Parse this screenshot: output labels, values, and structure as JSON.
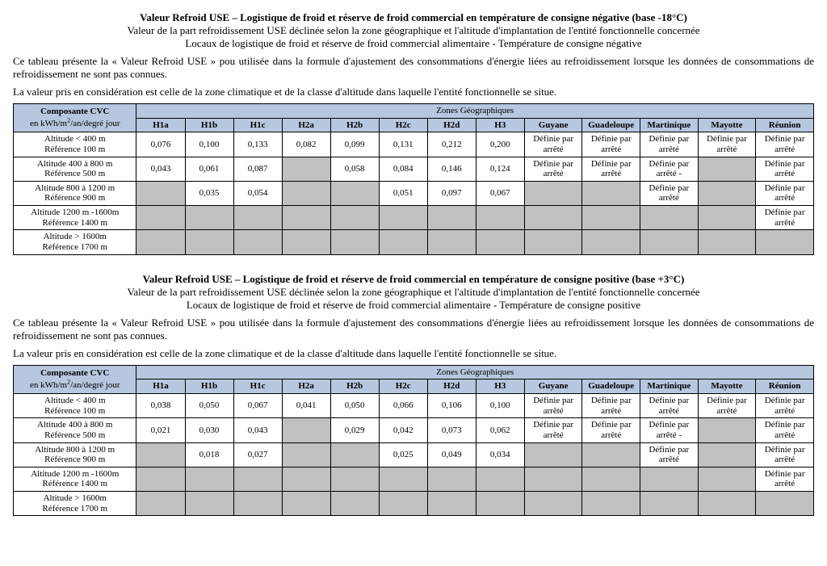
{
  "txt": {
    "def": "Définie par arrêté",
    "defm": "Définie par arrêté -",
    "zones": "Zones Géographiques",
    "compCvc": "Composante CVC",
    "compUnit": "en kWh/m²/an/degré jour"
  },
  "cols": {
    "h": [
      "H1a",
      "H1b",
      "H1c",
      "H2a",
      "H2b",
      "H2c",
      "H2d",
      "H3"
    ],
    "r": [
      "Guyane",
      "Guadeloupe",
      "Martinique",
      "Mayotte",
      "Réunion"
    ]
  },
  "rowLabels": [
    [
      "Altitude < 400 m",
      "Référence 100 m"
    ],
    [
      "Altitude 400 à 800 m",
      "Référence 500 m"
    ],
    [
      "Altitude 800 à 1200 m",
      "Référence 900 m"
    ],
    [
      "Altitude 1200 m -1600m",
      "Référence 1400 m"
    ],
    [
      "Altitude > 1600m",
      "Référence 1700 m"
    ]
  ],
  "sections": [
    {
      "title1": "Valeur Refroid USE – Logistique de froid et réserve de froid commercial en température de consigne négative (base -18°C)",
      "title2": "Valeur de la part refroidissement USE déclinée selon la zone géographique et l'altitude d'implantation de l'entité fonctionnelle concernée",
      "title3": "Locaux de logistique de froid et réserve de froid commercial alimentaire - Température de consigne négative",
      "intro1": "Ce tableau présente la « Valeur Refroid USE » pou utilisée dans la formule d'ajustement des consommations d'énergie liées au refroidissement lorsque les données de consommations de refroidissement ne sont pas connues.",
      "intro2": "La valeur pris en considération est celle de la zone climatique et de la classe d'altitude dans laquelle l'entité fonctionnelle se situe.",
      "rows": [
        {
          "h": [
            "0,076",
            "0,100",
            "0,133",
            "0,082",
            "0,099",
            "0,131",
            "0,212",
            "0,200"
          ],
          "r": [
            "D",
            "D",
            "D",
            "D",
            "D"
          ]
        },
        {
          "h": [
            "0,043",
            "0,061",
            "0,087",
            "G",
            "0,058",
            "0,084",
            "0,146",
            "0,124"
          ],
          "r": [
            "D",
            "D",
            "DM",
            "G",
            "D"
          ]
        },
        {
          "h": [
            "G",
            "0,035",
            "0,054",
            "G",
            "G",
            "0,051",
            "0,097",
            "0,067"
          ],
          "r": [
            "G",
            "G",
            "D",
            "G",
            "D"
          ]
        },
        {
          "h": [
            "G",
            "G",
            "G",
            "G",
            "G",
            "G",
            "G",
            "G"
          ],
          "r": [
            "G",
            "G",
            "G",
            "G",
            "D"
          ]
        },
        {
          "h": [
            "G",
            "G",
            "G",
            "G",
            "G",
            "G",
            "G",
            "G"
          ],
          "r": [
            "G",
            "G",
            "G",
            "G",
            "G"
          ]
        }
      ]
    },
    {
      "title1": "Valeur Refroid USE – Logistique de froid et réserve de froid commercial en température de consigne positive (base +3°C)",
      "title2": "Valeur de la part refroidissement USE déclinée selon la zone géographique et l'altitude d'implantation de l'entité fonctionnelle concernée",
      "title3": "Locaux de logistique de froid et réserve de froid commercial alimentaire - Température de consigne positive",
      "intro1": "Ce tableau présente la « Valeur Refroid USE » pou utilisée dans la formule d'ajustement des consommations d'énergie liées au refroidissement lorsque les données de consommations de refroidissement ne sont pas connues.",
      "intro2": "La valeur pris en considération est celle de la zone climatique et de la classe d'altitude dans laquelle l'entité fonctionnelle se situe.",
      "rows": [
        {
          "h": [
            "0,038",
            "0,050",
            "0,067",
            "0,041",
            "0,050",
            "0,066",
            "0,106",
            "0,100"
          ],
          "r": [
            "D",
            "D",
            "D",
            "D",
            "D"
          ]
        },
        {
          "h": [
            "0,021",
            "0,030",
            "0,043",
            "G",
            "0,029",
            "0,042",
            "0,073",
            "0,062"
          ],
          "r": [
            "D",
            "D",
            "DM",
            "G",
            "D"
          ]
        },
        {
          "h": [
            "G",
            "0,018",
            "0,027",
            "G",
            "G",
            "0,025",
            "0,049",
            "0,034"
          ],
          "r": [
            "G",
            "G",
            "D",
            "G",
            "D"
          ]
        },
        {
          "h": [
            "G",
            "G",
            "G",
            "G",
            "G",
            "G",
            "G",
            "G"
          ],
          "r": [
            "G",
            "G",
            "G",
            "G",
            "D"
          ]
        },
        {
          "h": [
            "G",
            "G",
            "G",
            "G",
            "G",
            "G",
            "G",
            "G"
          ],
          "r": [
            "G",
            "G",
            "G",
            "G",
            "G"
          ]
        }
      ]
    }
  ]
}
